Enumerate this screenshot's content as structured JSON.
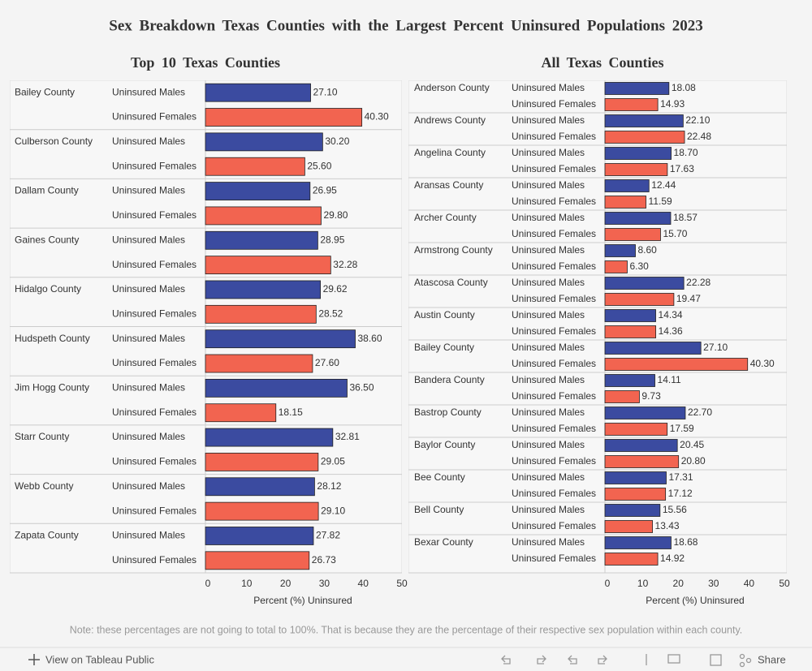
{
  "title": "Sex Breakdown Texas Counties with the Largest Percent Uninsured Populations 2023",
  "note": "Note: these percentages are not going to total to 100%. That is because they are the percentage of their respective sex population within each county.",
  "toolbar": {
    "view": "View on Tableau Public",
    "share": "Share"
  },
  "chart_data": [
    {
      "type": "bar",
      "title": "Top 10 Texas Counties",
      "xlabel": "Percent (%) Uninsured",
      "categories": [
        "Bailey County",
        "Culberson County",
        "Dallam County",
        "Gaines County",
        "Hidalgo County",
        "Hudspeth County",
        "Jim Hogg County",
        "Starr County",
        "Webb County",
        "Zapata County"
      ],
      "series": [
        {
          "name": "Uninsured Males",
          "color": "#3b4ba0",
          "values": [
            27.1,
            30.2,
            26.95,
            28.95,
            29.62,
            38.6,
            36.5,
            32.81,
            28.12,
            27.82
          ],
          "value_labels": [
            "27.10",
            "30.20",
            "26.95",
            "28.95",
            "29.62",
            "38.60",
            "36.50",
            "32.81",
            "28.12",
            "27.82"
          ]
        },
        {
          "name": "Uninsured Females",
          "color": "#f26450",
          "values": [
            40.3,
            25.6,
            29.8,
            32.28,
            28.52,
            27.6,
            18.15,
            29.05,
            29.1,
            26.73
          ],
          "value_labels": [
            "40.30",
            "25.60",
            "29.80",
            "32.28",
            "28.52",
            "27.60",
            "18.15",
            "29.05",
            "29.10",
            "26.73"
          ]
        }
      ],
      "xlim": [
        0,
        50
      ],
      "xticks": [
        0,
        10,
        20,
        30,
        40,
        50
      ]
    },
    {
      "type": "bar",
      "title": "All Texas Counties",
      "xlabel": "Percent (%) Uninsured",
      "categories": [
        "Anderson County",
        "Andrews County",
        "Angelina County",
        "Aransas County",
        "Archer County",
        "Armstrong County",
        "Atascosa County",
        "Austin County",
        "Bailey County",
        "Bandera County",
        "Bastrop County",
        "Baylor County",
        "Bee County",
        "Bell County",
        "Bexar County"
      ],
      "series": [
        {
          "name": "Uninsured Males",
          "color": "#3b4ba0",
          "values": [
            18.08,
            22.1,
            18.7,
            12.44,
            18.57,
            8.6,
            22.28,
            14.34,
            27.1,
            14.11,
            22.7,
            20.45,
            17.31,
            15.56,
            18.68
          ],
          "value_labels": [
            "18.08",
            "22.10",
            "18.70",
            "12.44",
            "18.57",
            "8.60",
            "22.28",
            "14.34",
            "27.10",
            "14.11",
            "22.70",
            "20.45",
            "17.31",
            "15.56",
            "18.68"
          ]
        },
        {
          "name": "Uninsured Females",
          "color": "#f26450",
          "values": [
            14.93,
            22.48,
            17.63,
            11.59,
            15.7,
            6.3,
            19.47,
            14.36,
            40.3,
            9.73,
            17.59,
            20.8,
            17.12,
            13.43,
            14.92
          ],
          "value_labels": [
            "14.93",
            "22.48",
            "17.63",
            "11.59",
            "15.70",
            "6.30",
            "19.47",
            "14.36",
            "40.30",
            "9.73",
            "17.59",
            "20.80",
            "17.12",
            "13.43",
            "14.92"
          ]
        }
      ],
      "xlim": [
        0,
        50
      ],
      "xticks": [
        0,
        10,
        20,
        30,
        40,
        50
      ]
    }
  ]
}
